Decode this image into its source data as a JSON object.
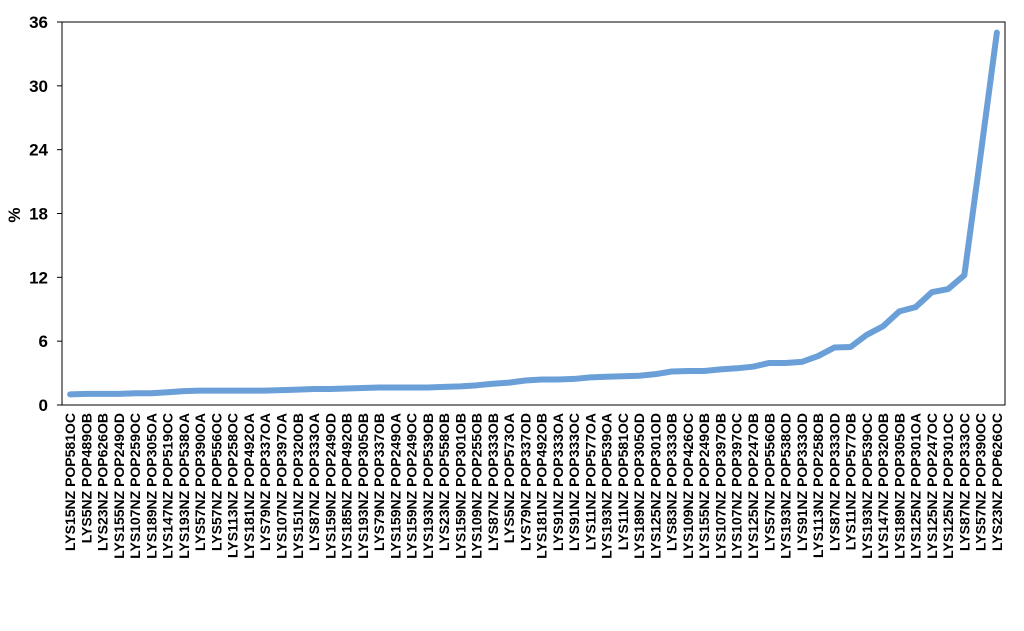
{
  "chart_data": {
    "type": "line",
    "y_label": "%",
    "categories": [
      "LYS15NZ POP581OC",
      "LYS5NZ POP489OB",
      "LYS23NZ POP626OB",
      "LYS155NZ POP249OD",
      "LYS107NZ POP259OC",
      "LYS189NZ POP305OA",
      "LYS147NZ POP519OC",
      "LYS193NZ POP538OA",
      "LYS57NZ POP390OA",
      "LYS57NZ POP556OC",
      "LYS113NZ POP258OC",
      "LYS181NZ POP492OA",
      "LYS79NZ POP337OA",
      "LYS107NZ POP397OA",
      "LYS151NZ POP320OB",
      "LYS87NZ POP333OA",
      "LYS159NZ POP249OD",
      "LYS185NZ POP492OB",
      "LYS193NZ POP305OB",
      "LYS79NZ POP337OB",
      "LYS159NZ POP249OA",
      "LYS159NZ POP249OC",
      "LYS193NZ POP539OB",
      "LYS23NZ POP558OB",
      "LYS159NZ POP301OB",
      "LYS109NZ POP255OB",
      "LYS87NZ POP333OB",
      "LYS5NZ POP573OA",
      "LYS79NZ POP337OD",
      "LYS181NZ POP492OB",
      "LYS91NZ POP333OA",
      "LYS91NZ POP333OC",
      "LYS11NZ POP577OA",
      "LYS193NZ POP539OA",
      "LYS11NZ POP581OC",
      "LYS189NZ POP305OD",
      "LYS125NZ POP301OD",
      "LYS83NZ POP333OB",
      "LYS109NZ POP426OC",
      "LYS155NZ POP249OB",
      "LYS107NZ POP397OB",
      "LYS107NZ POP397OC",
      "LYS125NZ POP247OB",
      "LYS57NZ POP556OB",
      "LYS193NZ POP538OD",
      "LYS91NZ POP333OD",
      "LYS113NZ POP258OB",
      "LYS87NZ POP333OD",
      "LYS11NZ POP577OB",
      "LYS193NZ POP539OC",
      "LYS147NZ POP320OB",
      "LYS189NZ POP305OB",
      "LYS125NZ POP301OA",
      "LYS125NZ POP247OC",
      "LYS125NZ POP301OC",
      "LYS87NZ POP333OC",
      "LYS57NZ POP390OC",
      "LYS23NZ POP626OC"
    ],
    "values": [
      1.0,
      1.05,
      1.05,
      1.05,
      1.1,
      1.1,
      1.2,
      1.3,
      1.35,
      1.35,
      1.35,
      1.35,
      1.35,
      1.4,
      1.45,
      1.5,
      1.5,
      1.55,
      1.6,
      1.65,
      1.65,
      1.65,
      1.65,
      1.7,
      1.75,
      1.85,
      2.0,
      2.1,
      2.3,
      2.4,
      2.4,
      2.45,
      2.6,
      2.65,
      2.7,
      2.75,
      2.9,
      3.15,
      3.2,
      3.2,
      3.35,
      3.45,
      3.6,
      3.95,
      3.95,
      4.05,
      4.6,
      5.4,
      5.45,
      6.6,
      7.4,
      8.8,
      9.2,
      10.6,
      10.9,
      12.2,
      23.5,
      35.0
    ],
    "color": "#6a9fd8",
    "ylim": [
      0,
      36
    ],
    "yticks": [
      0,
      6,
      12,
      18,
      24,
      30,
      36
    ],
    "grid": false
  }
}
